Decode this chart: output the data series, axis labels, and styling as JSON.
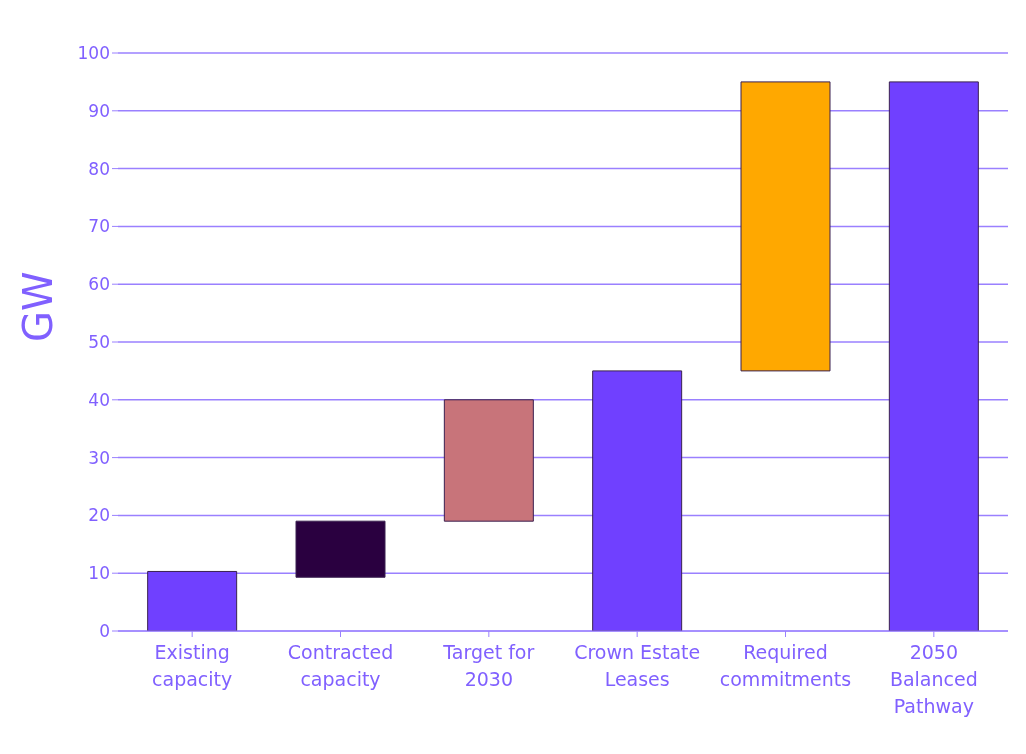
{
  "chart_data": {
    "type": "bar",
    "ylabel": "GW",
    "categories": [
      "Existing capacity",
      "Contracted capacity",
      "Target for 2030",
      "Crown Estate Leases",
      "Required commitments",
      "2050 Balanced Pathway"
    ],
    "values": [
      10.3,
      9.7,
      21,
      45,
      50,
      95
    ],
    "base": [
      0,
      9.3,
      19,
      0,
      45,
      0
    ],
    "colors": [
      "#7040ff",
      "#2a0040",
      "#c8747a",
      "#7040ff",
      "#ffa800",
      "#7040ff"
    ],
    "ylim": [
      0,
      100
    ],
    "yticks": [
      0,
      10,
      20,
      30,
      40,
      50,
      60,
      70,
      80,
      90,
      100
    ],
    "grid": "y"
  }
}
